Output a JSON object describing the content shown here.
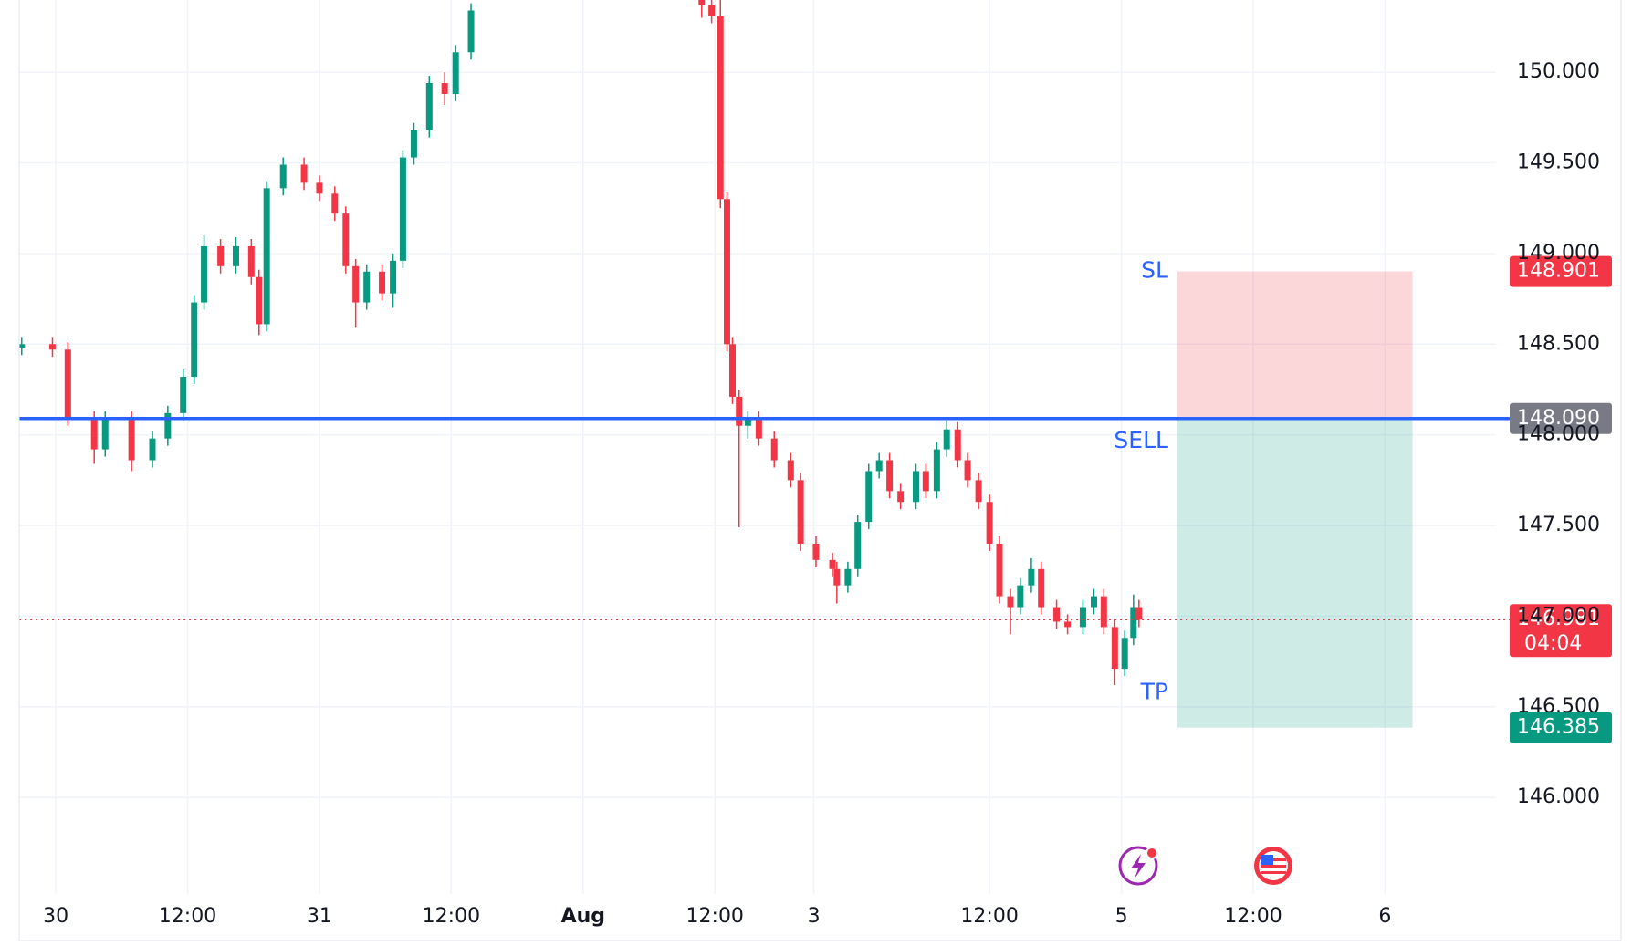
{
  "chart_data": {
    "type": "candlestick",
    "up_color": "#089981",
    "down_color": "#f23645",
    "grid": true,
    "xlim": [
      -3.33,
      131.1
    ],
    "ylim": [
      145.468,
      150.398
    ],
    "xticks": [
      {
        "value": 0,
        "label": "30"
      },
      {
        "value": 12,
        "label": "12:00"
      },
      {
        "value": 24,
        "label": "31"
      },
      {
        "value": 36,
        "label": "12:00"
      },
      {
        "value": 48,
        "label": "Aug"
      },
      {
        "value": 60,
        "label": "12:00"
      },
      {
        "value": 69,
        "label": "3"
      },
      {
        "value": 85,
        "label": "12:00"
      },
      {
        "value": 97,
        "label": "5"
      },
      {
        "value": 109,
        "label": "12:00"
      },
      {
        "value": 121,
        "label": "6"
      }
    ],
    "yticks": [
      {
        "value": 146,
        "label": "146.000"
      },
      {
        "value": 146.5,
        "label": "146.500"
      },
      {
        "value": 147,
        "label": "147.000"
      },
      {
        "value": 147.5,
        "label": "147.500"
      },
      {
        "value": 148,
        "label": "148.000"
      },
      {
        "value": 148.5,
        "label": "148.500"
      },
      {
        "value": 149,
        "label": "149.000"
      },
      {
        "value": 149.5,
        "label": "149.500"
      },
      {
        "value": 150,
        "label": "150.000"
      }
    ],
    "x": [
      -3.1,
      -0.3,
      1.1,
      3.5,
      4.5,
      6.9,
      8.8,
      10.2,
      11.6,
      12.6,
      13.5,
      15.0,
      16.4,
      17.8,
      18.5,
      19.2,
      20.7,
      22.6,
      24.0,
      25.4,
      26.4,
      27.3,
      28.3,
      29.7,
      30.7,
      31.6,
      32.6,
      34.0,
      35.4,
      36.4,
      37.8,
      58.8,
      59.7,
      60.5,
      61.1,
      61.6,
      62.2,
      63.0,
      64.0,
      65.4,
      66.9,
      67.8,
      69.2,
      70.7,
      71.1,
      72.1,
      73.0,
      74.0,
      74.95,
      75.9,
      76.9,
      78.3,
      79.2,
      80.2,
      81.1,
      82.1,
      83.0,
      84.0,
      85.0,
      85.9,
      86.9,
      87.8,
      88.8,
      89.7,
      91.1,
      92.1,
      93.5,
      94.5,
      95.4,
      96.4,
      97.3,
      98.1,
      98.6
    ],
    "open": [
      148.48,
      148.5,
      148.47,
      148.09,
      147.92,
      148.09,
      147.86,
      147.98,
      148.12,
      148.32,
      148.73,
      149.04,
      148.93,
      149.04,
      148.87,
      148.61,
      149.36,
      149.49,
      149.39,
      149.33,
      149.22,
      148.93,
      148.73,
      148.9,
      148.78,
      148.96,
      149.53,
      149.68,
      149.94,
      149.88,
      150.11,
      150.45,
      150.37,
      150.31,
      149.3,
      148.5,
      148.21,
      148.05,
      148.09,
      147.98,
      147.86,
      147.75,
      147.4,
      147.31,
      147.26,
      147.17,
      147.26,
      147.52,
      147.8,
      147.86,
      147.69,
      147.63,
      147.8,
      147.69,
      147.92,
      148.03,
      147.86,
      147.75,
      147.63,
      147.4,
      147.11,
      147.05,
      147.17,
      147.26,
      147.05,
      146.97,
      146.94,
      147.05,
      147.11,
      146.94,
      146.71,
      146.88,
      147.05
    ],
    "high": [
      148.54,
      148.54,
      148.51,
      148.13,
      148.13,
      148.13,
      148.02,
      148.16,
      148.36,
      148.77,
      149.1,
      149.08,
      149.09,
      149.08,
      148.91,
      149.4,
      149.53,
      149.53,
      149.43,
      149.37,
      149.26,
      148.97,
      148.94,
      148.94,
      149.0,
      149.57,
      149.72,
      149.98,
      150.0,
      150.15,
      150.38,
      150.49,
      150.41,
      150.45,
      149.34,
      148.54,
      148.25,
      148.13,
      148.13,
      148.02,
      147.9,
      147.79,
      147.44,
      147.35,
      147.3,
      147.3,
      147.56,
      147.84,
      147.9,
      147.9,
      147.73,
      147.84,
      147.84,
      147.96,
      148.08,
      148.07,
      147.9,
      147.79,
      147.67,
      147.44,
      147.15,
      147.21,
      147.32,
      147.3,
      147.09,
      147.01,
      147.09,
      147.15,
      147.15,
      146.98,
      146.92,
      147.12,
      147.09
    ],
    "low": [
      148.44,
      148.43,
      148.05,
      147.84,
      147.88,
      147.8,
      147.82,
      147.94,
      148.08,
      148.28,
      148.69,
      148.89,
      148.89,
      148.83,
      148.55,
      148.57,
      149.32,
      149.35,
      149.29,
      149.18,
      148.89,
      148.59,
      148.69,
      148.74,
      148.7,
      148.92,
      149.49,
      149.64,
      149.82,
      149.84,
      150.07,
      150.3,
      150.27,
      149.25,
      148.46,
      148.17,
      147.49,
      147.98,
      147.94,
      147.82,
      147.71,
      147.36,
      147.27,
      147.22,
      147.07,
      147.13,
      147.22,
      147.48,
      147.76,
      147.65,
      147.59,
      147.59,
      147.65,
      147.65,
      147.88,
      147.82,
      147.71,
      147.59,
      147.36,
      147.07,
      146.9,
      147.01,
      147.13,
      147.01,
      146.93,
      146.9,
      146.9,
      147.01,
      146.9,
      146.62,
      146.67,
      146.84,
      146.94
    ],
    "close": [
      148.5,
      148.47,
      148.09,
      147.92,
      148.09,
      147.86,
      147.98,
      148.12,
      148.32,
      148.73,
      149.04,
      148.93,
      149.04,
      148.87,
      148.61,
      149.36,
      149.49,
      149.39,
      149.33,
      149.22,
      148.93,
      148.73,
      148.9,
      148.78,
      148.96,
      149.53,
      149.68,
      149.94,
      149.88,
      150.11,
      150.34,
      150.37,
      150.31,
      149.3,
      148.5,
      148.21,
      148.05,
      148.09,
      147.98,
      147.86,
      147.75,
      147.4,
      147.31,
      147.26,
      147.17,
      147.26,
      147.52,
      147.8,
      147.86,
      147.69,
      147.63,
      147.8,
      147.69,
      147.92,
      148.03,
      147.86,
      147.75,
      147.63,
      147.4,
      147.11,
      147.05,
      147.17,
      147.26,
      147.05,
      146.97,
      146.94,
      147.05,
      147.11,
      146.94,
      146.71,
      146.88,
      147.05,
      146.981
    ],
    "position": {
      "x_range": [
        102.1,
        123.5
      ],
      "stop_loss": {
        "label": "SL",
        "value": 148.901,
        "value_label": "148.901"
      },
      "entry": {
        "label": "SELL",
        "value": 148.09,
        "value_label": "148.090"
      },
      "take_profit": {
        "label": "TP",
        "value": 146.385,
        "value_label": "146.385"
      }
    },
    "last_price": {
      "value": 146.981,
      "value_label": "146.981",
      "countdown": "04:04"
    }
  }
}
